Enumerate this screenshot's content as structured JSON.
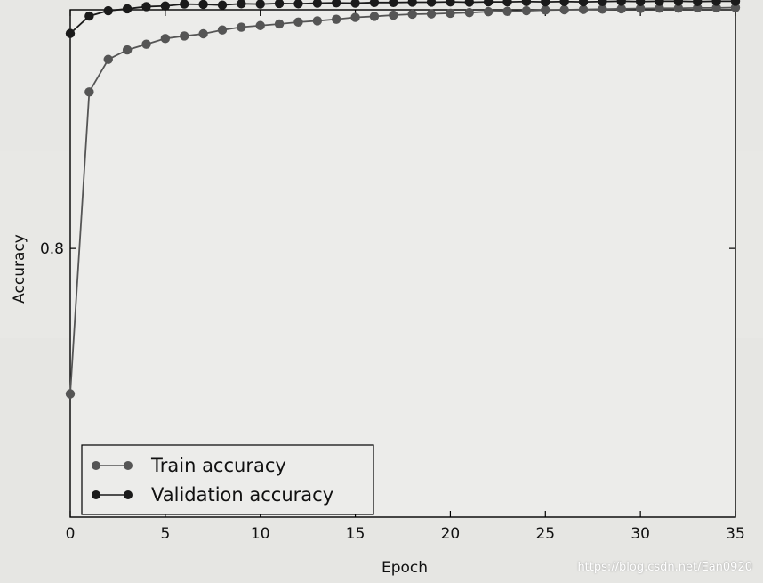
{
  "chart_data": {
    "type": "line",
    "xlabel": "Epoch",
    "ylabel": "Accuracy",
    "xlim": [
      0,
      35
    ],
    "ylim": [
      0.715,
      0.8755
    ],
    "xticks": [
      0,
      5,
      10,
      15,
      20,
      25,
      30,
      35
    ],
    "yticks": [
      0.8
    ],
    "ytick_labels": [
      "0.8"
    ],
    "legend_position": "lower-left",
    "x": [
      0,
      1,
      2,
      3,
      4,
      5,
      6,
      7,
      8,
      9,
      10,
      11,
      12,
      13,
      14,
      15,
      16,
      17,
      18,
      19,
      20,
      21,
      22,
      23,
      24,
      25,
      26,
      27,
      28,
      29,
      30,
      31,
      32,
      33,
      34,
      35
    ],
    "series": [
      {
        "name": "Train accuracy",
        "color": "#555555",
        "values": [
          0.754,
          0.8495,
          0.8598,
          0.8628,
          0.8646,
          0.8664,
          0.8672,
          0.8679,
          0.8691,
          0.87,
          0.8705,
          0.871,
          0.8716,
          0.872,
          0.8725,
          0.8731,
          0.8734,
          0.8738,
          0.8741,
          0.8742,
          0.8744,
          0.8746,
          0.8749,
          0.875,
          0.8752,
          0.8754,
          0.8755,
          0.8756,
          0.8757,
          0.8758,
          0.8759,
          0.876,
          0.876,
          0.8761,
          0.8761,
          0.8762
        ]
      },
      {
        "name": "Validation accuracy",
        "color": "#1a1a1a",
        "values": [
          0.868,
          0.8735,
          0.8752,
          0.8758,
          0.8765,
          0.8767,
          0.8773,
          0.8772,
          0.877,
          0.8774,
          0.8773,
          0.8775,
          0.8774,
          0.8776,
          0.8777,
          0.8776,
          0.8778,
          0.8778,
          0.8779,
          0.8779,
          0.878,
          0.8779,
          0.878,
          0.878,
          0.8781,
          0.878,
          0.8781,
          0.878,
          0.8781,
          0.8782,
          0.8781,
          0.8782,
          0.8782,
          0.8781,
          0.8782,
          0.8782
        ]
      }
    ]
  },
  "watermark": "https://blog.csdn.net/Ean0920"
}
